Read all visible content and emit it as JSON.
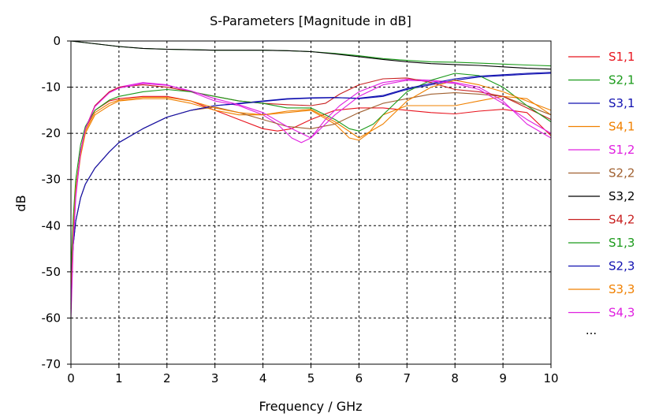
{
  "chart_data": {
    "type": "line",
    "title": "S-Parameters [Magnitude in dB]",
    "xlabel": "Frequency / GHz",
    "ylabel": "dB",
    "xlim": [
      0,
      10
    ],
    "ylim": [
      -70,
      0
    ],
    "xticks": [
      0,
      1,
      2,
      3,
      4,
      5,
      6,
      7,
      8,
      9,
      10
    ],
    "yticks": [
      0,
      -10,
      -20,
      -30,
      -40,
      -50,
      -60,
      -70
    ],
    "grid": true,
    "legend_position": "right",
    "legend_more": "...",
    "series": [
      {
        "name": "S1,1",
        "color": "#e8141e",
        "x": [
          0,
          0.05,
          0.1,
          0.2,
          0.3,
          0.5,
          0.8,
          1.0,
          1.5,
          2.0,
          2.5,
          3.0,
          3.5,
          4.0,
          4.3,
          4.6,
          4.8,
          5.0,
          5.5,
          6.0,
          6.5,
          7.0,
          7.5,
          8.0,
          8.5,
          9.0,
          9.5,
          10.0
        ],
        "y": [
          -56,
          -40,
          -32,
          -24,
          -19,
          -15,
          -13,
          -12.5,
          -12,
          -12,
          -13,
          -15,
          -17,
          -19,
          -19.5,
          -19,
          -18,
          -17,
          -15,
          -14.5,
          -14.5,
          -15,
          -15.5,
          -15.8,
          -15.2,
          -14.8,
          -15.5,
          -20.5
        ]
      },
      {
        "name": "S2,1",
        "color": "#1a9a1a",
        "x": [
          0,
          0.5,
          1,
          1.5,
          2,
          2.5,
          3,
          3.5,
          4,
          4.5,
          5,
          5.5,
          6,
          6.5,
          7,
          7.5,
          8,
          8.5,
          9,
          9.5,
          10
        ],
        "y": [
          0,
          -0.6,
          -1.2,
          -1.6,
          -1.8,
          -1.9,
          -2,
          -2,
          -2,
          -2.1,
          -2.3,
          -2.7,
          -3.2,
          -3.8,
          -4.2,
          -4.5,
          -4.6,
          -4.8,
          -5,
          -5.2,
          -5.4
        ]
      },
      {
        "name": "S3,1",
        "color": "#1010b0",
        "x": [
          0,
          0.05,
          0.1,
          0.2,
          0.3,
          0.5,
          0.8,
          1.0,
          1.5,
          2.0,
          2.5,
          3.0,
          3.5,
          4.0,
          4.5,
          5.0,
          5.5,
          6.0,
          6.5,
          7.0,
          7.5,
          8.0,
          8.5,
          9.0,
          9.5,
          10.0
        ],
        "y": [
          -52,
          -44,
          -39,
          -34,
          -31,
          -27.5,
          -24,
          -22,
          -19,
          -16.5,
          -15,
          -14,
          -13.5,
          -13,
          -12.5,
          -12.3,
          -12.2,
          -12.5,
          -12,
          -10.5,
          -9.5,
          -8.5,
          -7.8,
          -7.5,
          -7.2,
          -7
        ]
      },
      {
        "name": "S4,1",
        "color": "#f08000",
        "x": [
          0,
          0.05,
          0.1,
          0.2,
          0.3,
          0.5,
          0.8,
          1.0,
          1.5,
          2.0,
          2.5,
          3.0,
          3.5,
          4.0,
          4.5,
          5.0,
          5.5,
          5.8,
          6.0,
          6.2,
          6.5,
          7.0,
          7.5,
          8.0,
          8.5,
          9.0,
          9.5,
          10.0
        ],
        "y": [
          -57,
          -42,
          -33,
          -25,
          -20,
          -16,
          -14,
          -13,
          -12.5,
          -12.5,
          -13.5,
          -15,
          -16,
          -16,
          -15.5,
          -15,
          -18,
          -21,
          -21.5,
          -20,
          -16,
          -14,
          -14,
          -14,
          -13,
          -12,
          -12.5,
          -16
        ]
      },
      {
        "name": "S1,2",
        "color": "#e020e0",
        "x": [
          0,
          0.05,
          0.1,
          0.2,
          0.3,
          0.5,
          0.8,
          1.0,
          1.5,
          2.0,
          2.5,
          3.0,
          3.5,
          4.0,
          4.3,
          4.6,
          4.8,
          5.0,
          5.3,
          5.6,
          6.0,
          6.5,
          7.0,
          7.5,
          8.0,
          8.5,
          9.0,
          9.5,
          10.0
        ],
        "y": [
          -60,
          -44,
          -34,
          -24,
          -19,
          -14,
          -11,
          -10,
          -9,
          -9.5,
          -11,
          -13,
          -14,
          -16,
          -18,
          -21,
          -22,
          -21,
          -17,
          -14,
          -11,
          -9,
          -8.3,
          -8.5,
          -9,
          -10,
          -13,
          -18,
          -21
        ]
      },
      {
        "name": "S2,2",
        "color": "#a06030",
        "x": [
          0,
          0.05,
          0.1,
          0.2,
          0.3,
          0.5,
          0.8,
          1.0,
          1.5,
          2.0,
          2.5,
          3.0,
          3.5,
          4.0,
          4.5,
          5.0,
          5.5,
          6.0,
          6.5,
          7.0,
          7.5,
          8.0,
          8.5,
          9.0,
          9.5,
          10.0
        ],
        "y": [
          -52,
          -44,
          -39,
          -34,
          -31,
          -27.5,
          -24,
          -22,
          -19,
          -16.5,
          -15,
          -14.3,
          -15.5,
          -17,
          -18.5,
          -19,
          -18,
          -15.5,
          -13.5,
          -12.5,
          -11.5,
          -11.2,
          -11.5,
          -12,
          -14,
          -16
        ]
      },
      {
        "name": "S3,2",
        "color": "#000000",
        "x": [
          0,
          0.5,
          1,
          1.5,
          2,
          2.5,
          3,
          3.5,
          4,
          4.5,
          5,
          5.5,
          6,
          6.5,
          7,
          7.5,
          8,
          8.5,
          9,
          9.5,
          10
        ],
        "y": [
          0,
          -0.6,
          -1.2,
          -1.6,
          -1.8,
          -1.9,
          -2,
          -2,
          -2,
          -2.1,
          -2.3,
          -2.8,
          -3.4,
          -4,
          -4.5,
          -4.9,
          -5.1,
          -5.3,
          -5.6,
          -5.9,
          -6.1
        ]
      },
      {
        "name": "S4,2",
        "color": "#c82020",
        "x": [
          0,
          0.05,
          0.1,
          0.2,
          0.3,
          0.5,
          0.8,
          1.0,
          1.5,
          2.0,
          2.5,
          3.0,
          3.5,
          4.0,
          4.5,
          5.0,
          5.3,
          5.6,
          6.0,
          6.5,
          7.0,
          7.5,
          8.0,
          8.5,
          9.0,
          9.5,
          10.0
        ],
        "y": [
          -58,
          -42,
          -33,
          -24,
          -19,
          -14,
          -11,
          -10,
          -9.5,
          -10,
          -11,
          -12,
          -13,
          -13.5,
          -13.8,
          -14,
          -13.5,
          -11.5,
          -9.5,
          -8.2,
          -8,
          -9,
          -10.5,
          -11,
          -12,
          -14.5,
          -17
        ]
      },
      {
        "name": "S1,3",
        "color": "#1a9a1a",
        "x": [
          0,
          0.05,
          0.1,
          0.2,
          0.3,
          0.5,
          0.8,
          1.0,
          1.5,
          2.0,
          2.5,
          3.0,
          3.5,
          4.0,
          4.5,
          5.0,
          5.5,
          5.8,
          6.0,
          6.3,
          6.6,
          7.0,
          7.5,
          8.0,
          8.5,
          9.0,
          9.5,
          10.0
        ],
        "y": [
          -50,
          -38,
          -30,
          -22.5,
          -18.5,
          -15,
          -12.8,
          -12,
          -11,
          -10.5,
          -11,
          -12,
          -13,
          -13.5,
          -14.5,
          -14.5,
          -17,
          -19,
          -19.5,
          -18,
          -15,
          -11,
          -8.5,
          -7,
          -7.5,
          -10,
          -14,
          -17.5
        ]
      },
      {
        "name": "S2,3",
        "color": "#1010b0",
        "x": [
          0,
          0.05,
          0.1,
          0.2,
          0.3,
          0.5,
          0.8,
          1.0,
          1.5,
          2.0,
          2.5,
          3.0,
          3.5,
          4.0,
          4.5,
          5.0,
          5.5,
          6.0,
          6.5,
          7.0,
          7.5,
          8.0,
          8.5,
          9.0,
          9.5,
          10.0
        ],
        "y": [
          -52,
          -44,
          -39,
          -34,
          -31,
          -27.5,
          -24,
          -22,
          -19,
          -16.5,
          -15,
          -14,
          -13.6,
          -13.1,
          -12.6,
          -12.4,
          -12.3,
          -12.4,
          -11.8,
          -10.3,
          -9.2,
          -8.2,
          -7.6,
          -7.3,
          -7,
          -6.8
        ]
      },
      {
        "name": "S3,3",
        "color": "#f08000",
        "x": [
          0,
          0.05,
          0.1,
          0.2,
          0.3,
          0.5,
          0.8,
          1.0,
          1.5,
          2.0,
          2.5,
          3.0,
          3.5,
          4.0,
          4.5,
          5.0,
          5.5,
          6.0,
          6.5,
          7.0,
          7.5,
          8.0,
          8.5,
          9.0,
          9.5,
          10.0
        ],
        "y": [
          -56,
          -41,
          -32,
          -24.5,
          -19.5,
          -15.5,
          -13.5,
          -12.8,
          -12.2,
          -12.2,
          -13,
          -14.5,
          -15.5,
          -16,
          -15.2,
          -14.8,
          -17.5,
          -21,
          -18,
          -13,
          -10,
          -8.5,
          -9.5,
          -11,
          -13,
          -15
        ]
      },
      {
        "name": "S4,3",
        "color": "#e020e0",
        "x": [
          0,
          0.05,
          0.1,
          0.2,
          0.3,
          0.5,
          0.8,
          1.0,
          1.5,
          2.0,
          2.5,
          3.0,
          3.5,
          4.0,
          4.5,
          5.0,
          5.5,
          6.0,
          6.5,
          7.0,
          7.5,
          8.0,
          8.5,
          9.0,
          9.5,
          10.0
        ],
        "y": [
          -59,
          -43,
          -33.5,
          -24,
          -19,
          -14.2,
          -11.2,
          -10.2,
          -9.2,
          -9.6,
          -10.8,
          -12.5,
          -13.8,
          -15.5,
          -18.5,
          -21,
          -16,
          -12,
          -9.5,
          -8.5,
          -8.7,
          -9.2,
          -10.5,
          -13.5,
          -17,
          -20
        ]
      }
    ]
  }
}
